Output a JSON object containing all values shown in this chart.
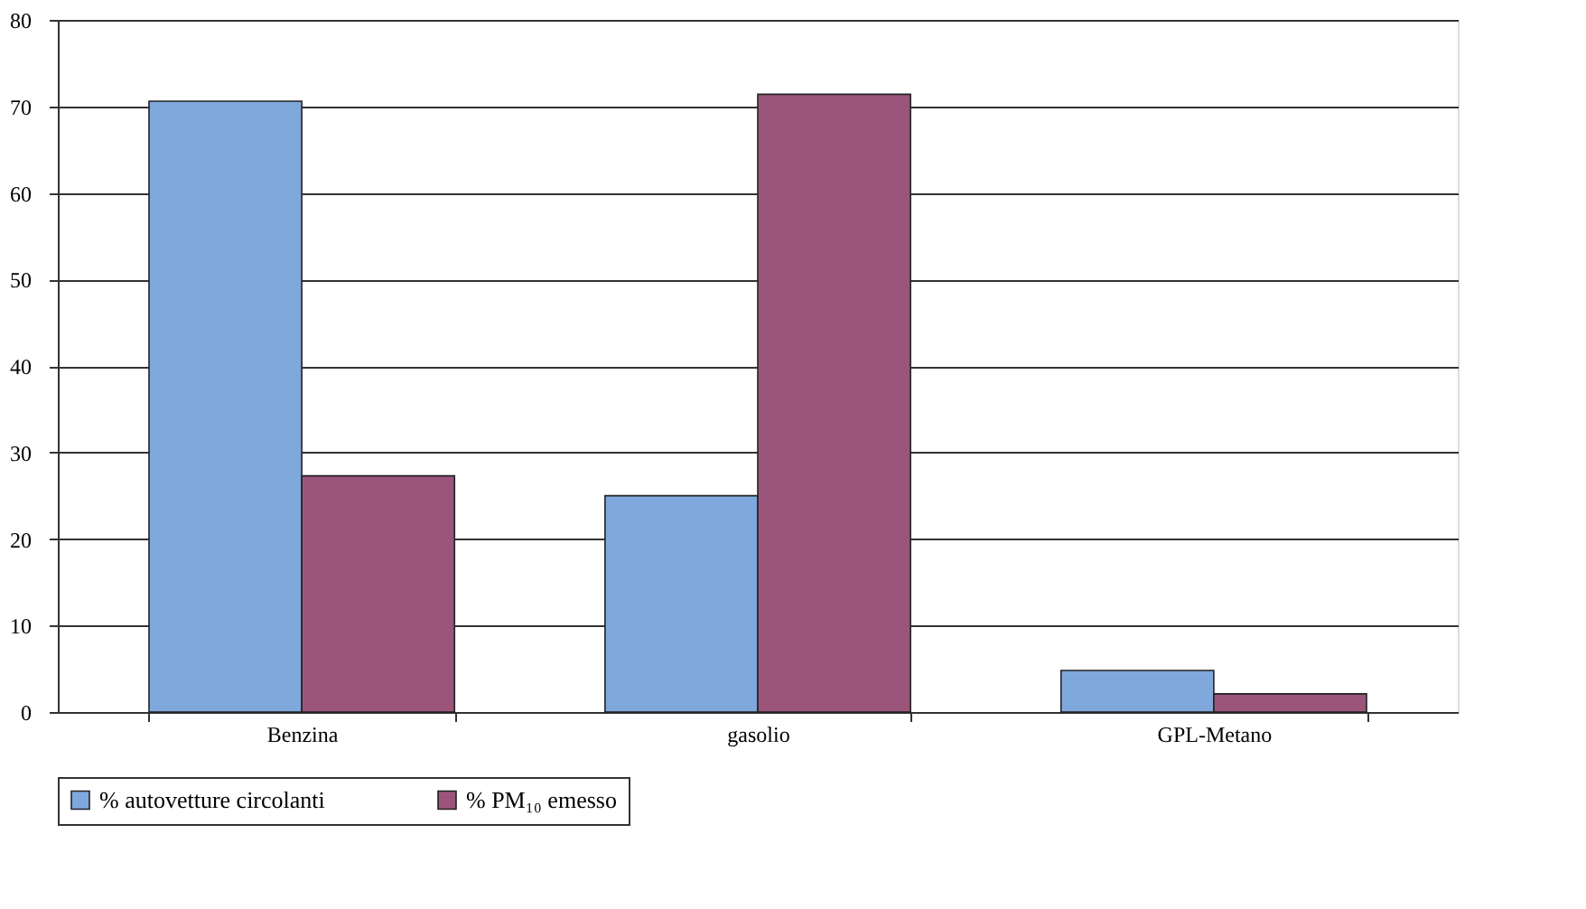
{
  "chart_data": {
    "type": "bar",
    "categories": [
      "Benzina",
      "gasolio",
      "GPL-Metano"
    ],
    "series": [
      {
        "name": "% autovetture circolanti",
        "color": "#7fa8dc",
        "values": [
          70.6,
          25.0,
          4.8
        ]
      },
      {
        "name": "% PM₁₀ emesso",
        "color": "#9b557b",
        "values": [
          27.3,
          71.4,
          2.1
        ]
      }
    ],
    "ylim": [
      0,
      80
    ],
    "yticks": [
      0,
      10,
      20,
      30,
      40,
      50,
      60,
      70,
      80
    ],
    "grid": "y",
    "legend": "bottom"
  }
}
